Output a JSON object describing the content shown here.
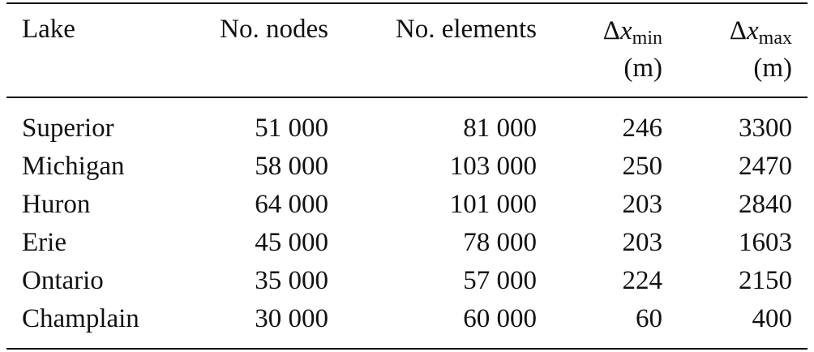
{
  "table": {
    "header": [
      {
        "text": "Lake"
      },
      {
        "text": "No. nodes"
      },
      {
        "text": "No. elements"
      },
      {
        "symbol": "Δ",
        "var": "x",
        "sub": "min",
        "unit": "(m)"
      },
      {
        "symbol": "Δ",
        "var": "x",
        "sub": "max",
        "unit": "(m)"
      }
    ],
    "rows": [
      [
        "Superior",
        "51 000",
        "81 000",
        "246",
        "3300"
      ],
      [
        "Michigan",
        "58 000",
        "103 000",
        "250",
        "2470"
      ],
      [
        "Huron",
        "64 000",
        "101 000",
        "203",
        "2840"
      ],
      [
        "Erie",
        "45 000",
        "78 000",
        "203",
        "1603"
      ],
      [
        "Ontario",
        "35 000",
        "57 000",
        "224",
        "2150"
      ],
      [
        "Champlain",
        "30 000",
        "60 000",
        "60",
        "400"
      ]
    ]
  }
}
